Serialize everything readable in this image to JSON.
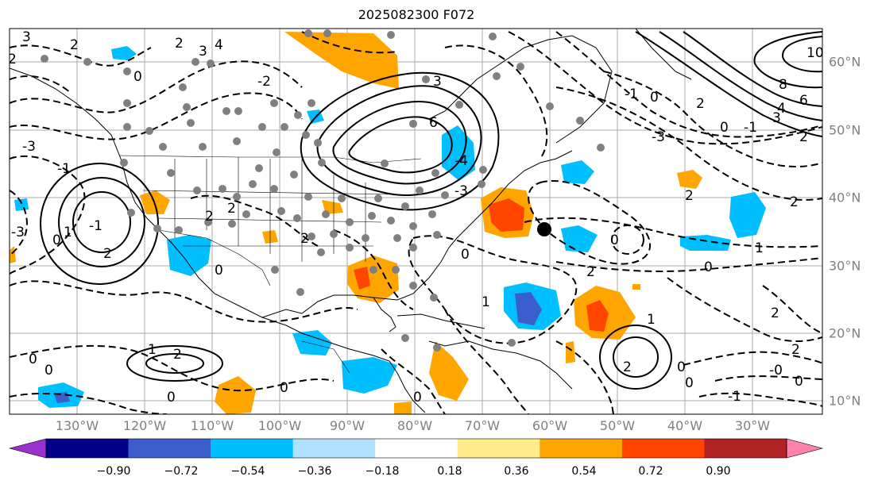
{
  "title": "2025082300 F072",
  "lon_labels": [
    "130°W",
    "120°W",
    "110°W",
    "100°W",
    "90°W",
    "80°W",
    "70°W",
    "60°W",
    "50°W",
    "40°W",
    "30°W"
  ],
  "lat_labels": [
    "60°N",
    "50°N",
    "40°N",
    "30°N",
    "20°N",
    "10°N"
  ],
  "colorbar": {
    "ticks": [
      "−0.90",
      "−0.72",
      "−0.54",
      "−0.36",
      "−0.18",
      "0.18",
      "0.36",
      "0.54",
      "0.72",
      "0.90"
    ],
    "colors": [
      "#9932cc",
      "#00008b",
      "#3a5fcd",
      "#00bfff",
      "#b0e2ff",
      "#ffffff",
      "#ffec8b",
      "#ffa500",
      "#ff4500",
      "#b22222",
      "#ff82ab"
    ]
  },
  "contour_labels": [
    "3",
    "2",
    "0",
    "-1",
    "-2",
    "-3",
    "4",
    "6",
    "8",
    "10",
    "1",
    "-4",
    "-0"
  ]
}
